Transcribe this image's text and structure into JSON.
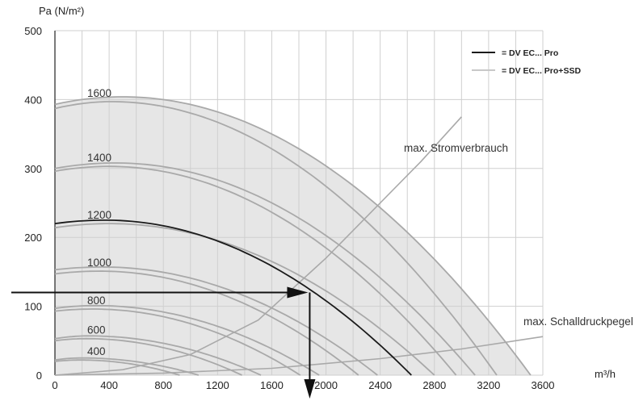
{
  "chart_data": {
    "type": "line",
    "xlabel": "m³/h",
    "ylabel": "Pa (N/m²)",
    "xlim": [
      0,
      3600
    ],
    "ylim": [
      0,
      500
    ],
    "x_ticks": [
      "0",
      "400",
      "800",
      "1200",
      "1600",
      "2000",
      "2400",
      "2800",
      "3200",
      "3600"
    ],
    "y_ticks": [
      "0",
      "100",
      "200",
      "300",
      "400",
      "500"
    ],
    "grid": true,
    "legend_position": "top-right",
    "legend": [
      {
        "label": "= DV EC... Pro",
        "color": "#1a1a1a"
      },
      {
        "label": "= DV EC... Pro+SSD",
        "color": "#c8c8c8"
      }
    ],
    "curve_labels": [
      "1600",
      "1400",
      "1200",
      "1000",
      "800",
      "600",
      "400"
    ],
    "series_ssd": [
      {
        "name": "1600",
        "p0": 393,
        "peak_x": 500,
        "peak_p": 404,
        "end_x": 3510
      },
      {
        "name": "1600",
        "p0": 387,
        "peak_x": 420,
        "peak_p": 397,
        "end_x": 3260
      },
      {
        "name": "1400",
        "p0": 300,
        "peak_x": 450,
        "peak_p": 308,
        "end_x": 3100
      },
      {
        "name": "1400",
        "p0": 296,
        "peak_x": 400,
        "peak_p": 303,
        "end_x": 2960
      },
      {
        "name": "1200",
        "p0": 214,
        "peak_x": 400,
        "peak_p": 220,
        "end_x": 2800
      },
      {
        "name": "1000",
        "p0": 153,
        "peak_x": 350,
        "peak_p": 157,
        "end_x": 2380
      },
      {
        "name": "1000",
        "p0": 147,
        "peak_x": 330,
        "peak_p": 151,
        "end_x": 2240
      },
      {
        "name": "800",
        "p0": 97,
        "peak_x": 300,
        "peak_p": 101,
        "end_x": 1950
      },
      {
        "name": "800",
        "p0": 93,
        "peak_x": 280,
        "peak_p": 96,
        "end_x": 1810
      },
      {
        "name": "600",
        "p0": 53,
        "peak_x": 250,
        "peak_p": 57,
        "end_x": 1520
      },
      {
        "name": "600",
        "p0": 50,
        "peak_x": 230,
        "peak_p": 53,
        "end_x": 1380
      },
      {
        "name": "400",
        "p0": 22,
        "peak_x": 200,
        "peak_p": 25,
        "end_x": 1060
      },
      {
        "name": "400",
        "p0": 20,
        "peak_x": 190,
        "peak_p": 22,
        "end_x": 920
      }
    ],
    "series_pro": [
      {
        "name": "1200",
        "p0": 220,
        "peak_x": 370,
        "peak_p": 225,
        "end_x": 2630
      }
    ],
    "max_power_curve": {
      "label": "max. Stromverbrauch",
      "x": [
        0,
        500,
        1000,
        1500,
        2000,
        2400,
        2700,
        3000
      ],
      "y": [
        0,
        8,
        30,
        80,
        170,
        250,
        310,
        375
      ]
    },
    "max_sound_curve": {
      "label": "max. Schalldruckpegel",
      "x": [
        0,
        800,
        1600,
        2400,
        3000,
        3600
      ],
      "y": [
        0,
        3,
        10,
        24,
        38,
        56
      ]
    },
    "operating_point": {
      "x": 1880,
      "y": 120
    }
  }
}
